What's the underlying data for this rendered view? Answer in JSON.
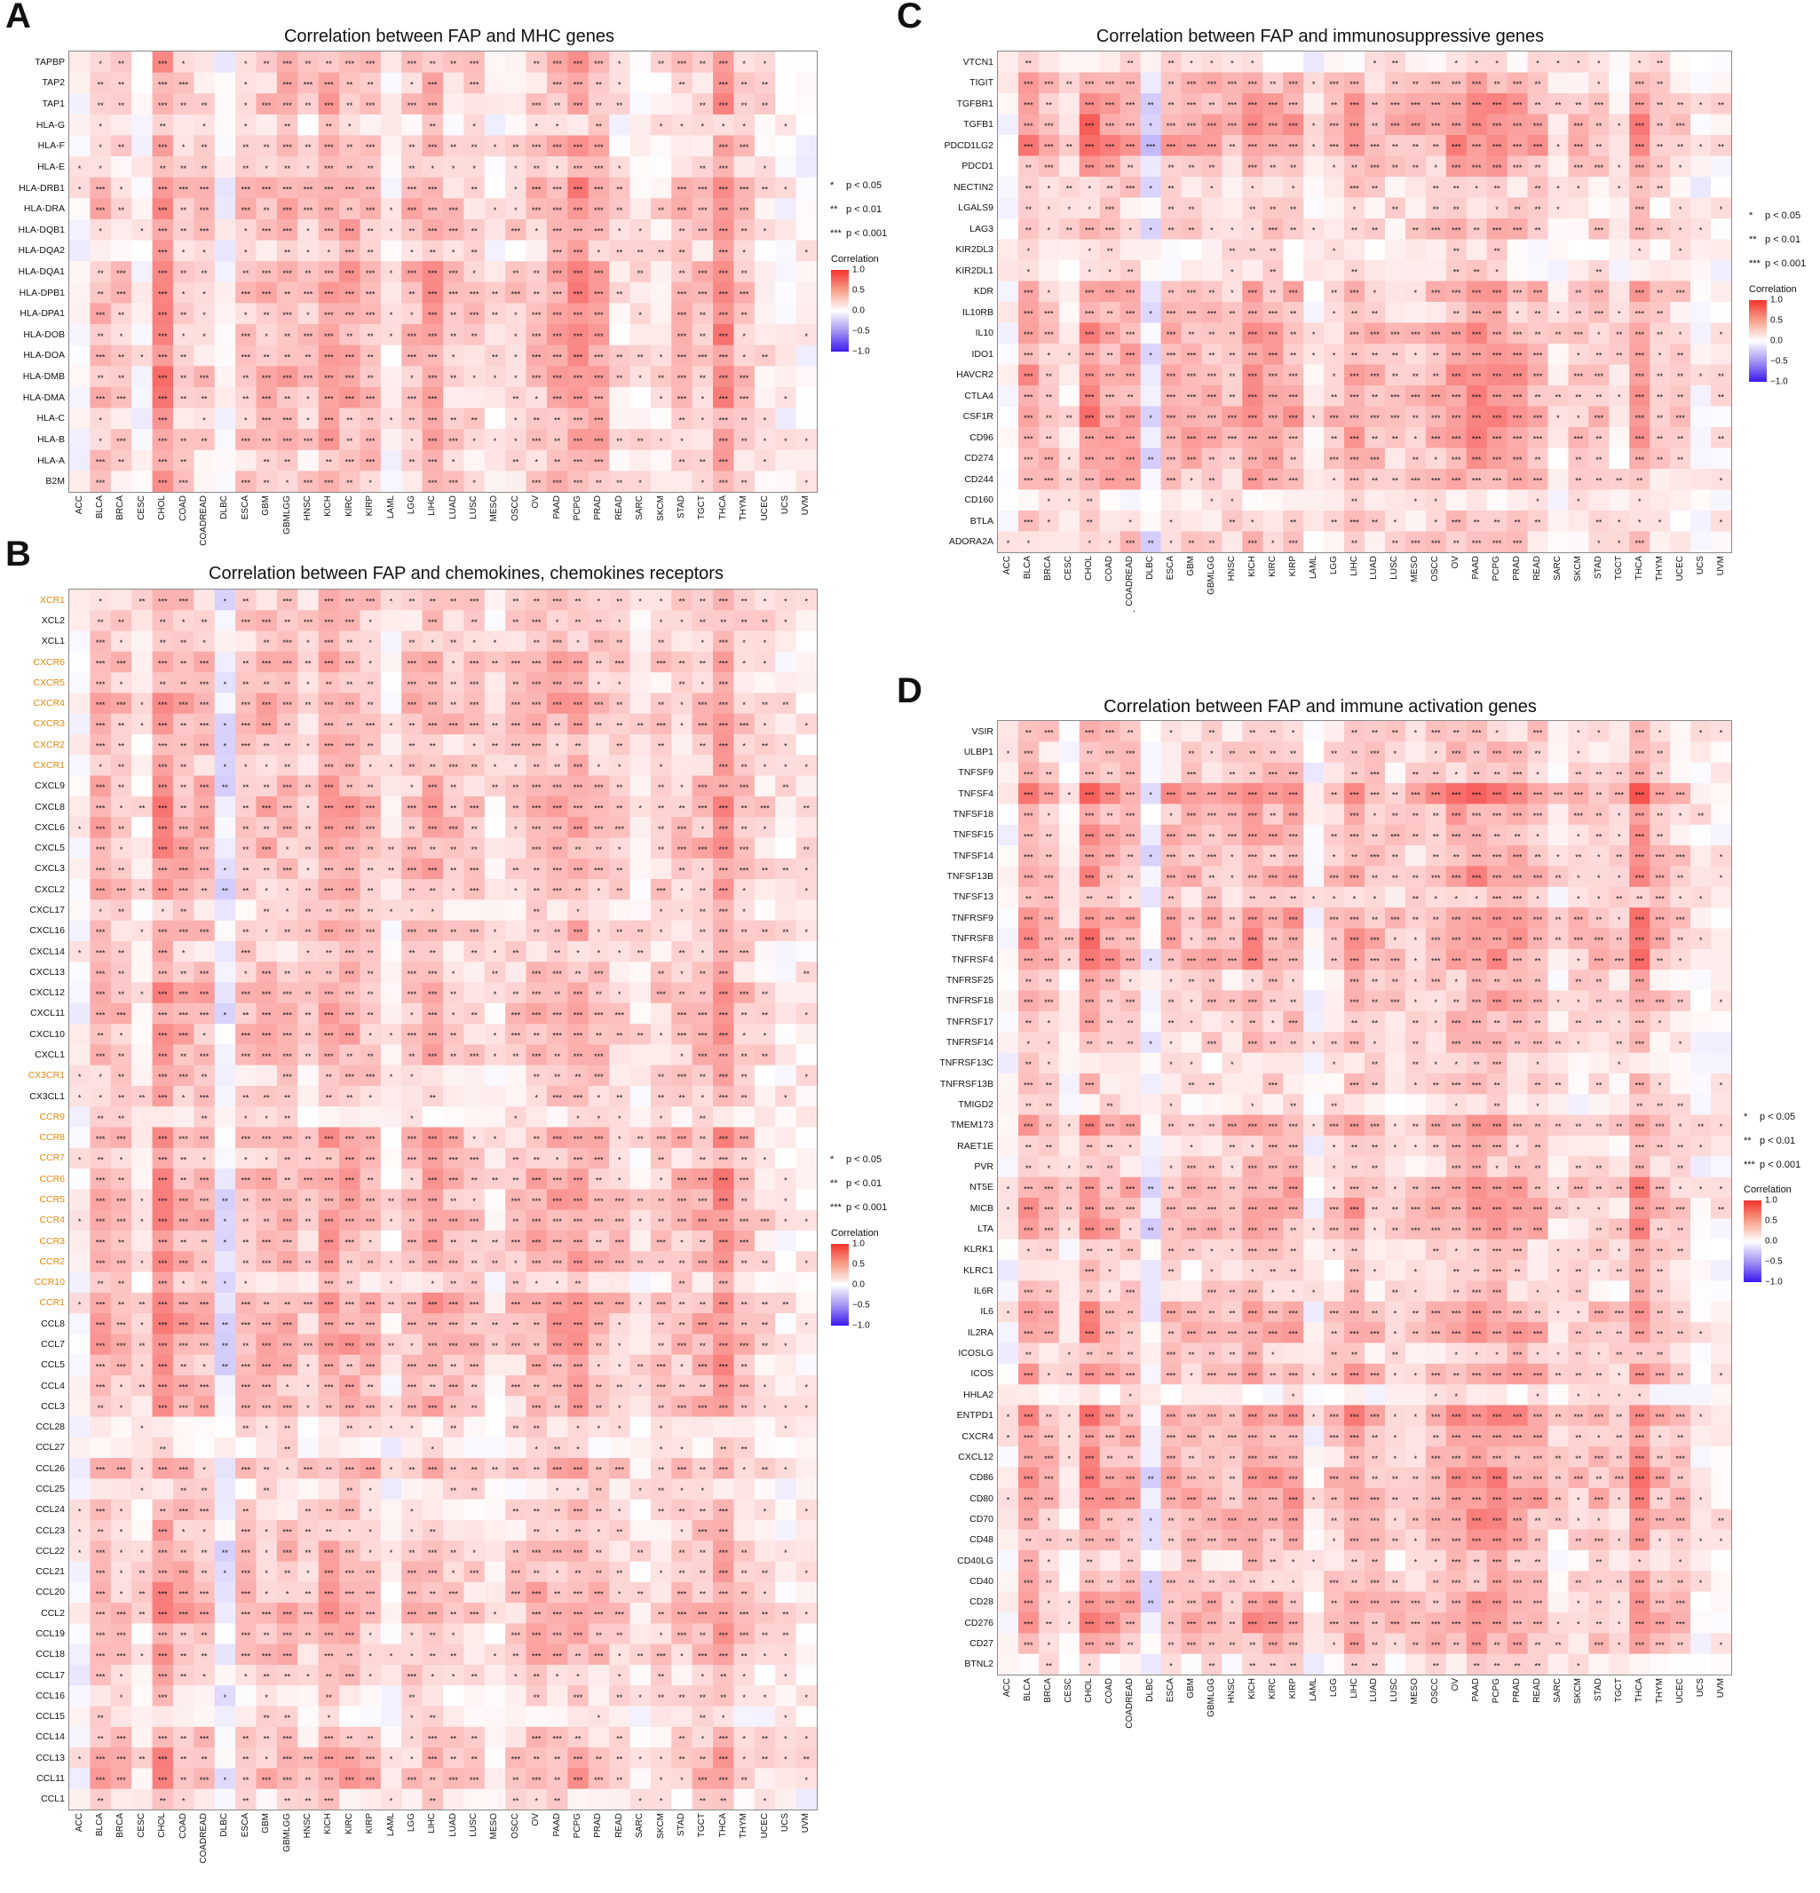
{
  "labels": {
    "A": "A",
    "B": "B",
    "C": "C",
    "D": "D"
  },
  "legend": {
    "sig1": "p < 0.05",
    "sig2": "p < 0.01",
    "sig3": "p < 0.001",
    "star1": "*",
    "star2": "**",
    "star3": "***",
    "cbar_title": "Correlation",
    "cbar_ticks": [
      "1.0",
      "0.5",
      "0.0",
      "−0.5",
      "−1.0"
    ]
  },
  "colors": {
    "positive": "#f5322d",
    "neutral": "#ffffff",
    "negative": "#3a19f2",
    "highlight_label": "#e3890f"
  },
  "stray_mark": ".",
  "chart_data": [
    {
      "id": "A",
      "type": "heatmap",
      "title": "Correlation between FAP and MHC genes",
      "zlim": [
        -1.0,
        1.0
      ],
      "columns": [
        "ACC",
        "BLCA",
        "BRCA",
        "CESC",
        "CHOL",
        "COAD",
        "COADREAD",
        "DLBC",
        "ESCA",
        "GBM",
        "GBMLGG",
        "HNSC",
        "KICH",
        "KIRC",
        "KIRP",
        "LAML",
        "LGG",
        "LIHC",
        "LUAD",
        "LUSC",
        "MESO",
        "OSCC",
        "OV",
        "PAAD",
        "PCPG",
        "PRAD",
        "READ",
        "SARC",
        "SKCM",
        "STAD",
        "TGCT",
        "THCA",
        "THYM",
        "UCEC",
        "UCS",
        "UVM"
      ],
      "rows": [
        "TAPBP",
        "TAP2",
        "TAP1",
        "HLA-G",
        "HLA-F",
        "HLA-E",
        "HLA-DRB1",
        "HLA-DRA",
        "HLA-DQB1",
        "HLA-DQA2",
        "HLA-DQA1",
        "HLA-DPB1",
        "HLA-DPA1",
        "HLA-DOB",
        "HLA-DOA",
        "HLA-DMB",
        "HLA-DMA",
        "HLA-C",
        "HLA-B",
        "HLA-A",
        "B2M"
      ],
      "highlight_rows": [],
      "col_profile": [
        0.05,
        0.3,
        0.22,
        0.05,
        0.55,
        0.25,
        0.22,
        -0.02,
        0.25,
        0.3,
        0.38,
        0.22,
        0.42,
        0.38,
        0.32,
        0.08,
        0.3,
        0.4,
        0.22,
        0.22,
        0.1,
        0.2,
        0.28,
        0.4,
        0.5,
        0.4,
        0.15,
        0.12,
        0.15,
        0.25,
        0.28,
        0.55,
        0.28,
        0.15,
        0.05,
        0.05
      ],
      "row_profile": [
        0.9,
        0.8,
        0.9,
        0.4,
        0.8,
        0.6,
        1.1,
        1.1,
        1.0,
        0.7,
        1.1,
        1.1,
        1.1,
        1.0,
        1.0,
        1.1,
        1.0,
        0.8,
        0.9,
        0.8,
        0.8
      ]
    },
    {
      "id": "B",
      "type": "heatmap",
      "title": "Correlation between FAP and chemokines, chemokines receptors",
      "zlim": [
        -1.0,
        1.0
      ],
      "columns": [
        "ACC",
        "BLCA",
        "BRCA",
        "CESC",
        "CHOL",
        "COAD",
        "COADREAD",
        "DLBC",
        "ESCA",
        "GBM",
        "GBMLGG",
        "HNSC",
        "KICH",
        "KIRC",
        "KIRP",
        "LAML",
        "LGG",
        "LIHC",
        "LUAD",
        "LUSC",
        "MESO",
        "OSCC",
        "OV",
        "PAAD",
        "PCPG",
        "PRAD",
        "READ",
        "SARC",
        "SKCM",
        "STAD",
        "TGCT",
        "THCA",
        "THYM",
        "UCEC",
        "UCS",
        "UVM"
      ],
      "rows": [
        "XCR1",
        "XCL2",
        "XCL1",
        "CXCR6",
        "CXCR5",
        "CXCR4",
        "CXCR3",
        "CXCR2",
        "CXCR1",
        "CXCL9",
        "CXCL8",
        "CXCL6",
        "CXCL5",
        "CXCL3",
        "CXCL2",
        "CXCL17",
        "CXCL16",
        "CXCL14",
        "CXCL13",
        "CXCL12",
        "CXCL11",
        "CXCL10",
        "CXCL1",
        "CX3CR1",
        "CX3CL1",
        "CCR9",
        "CCR8",
        "CCR7",
        "CCR6",
        "CCR5",
        "CCR4",
        "CCR3",
        "CCR2",
        "CCR10",
        "CCR1",
        "CCL8",
        "CCL7",
        "CCL5",
        "CCL4",
        "CCL3",
        "CCL28",
        "CCL27",
        "CCL26",
        "CCL25",
        "CCL24",
        "CCL23",
        "CCL22",
        "CCL21",
        "CCL20",
        "CCL2",
        "CCL19",
        "CCL18",
        "CCL17",
        "CCL16",
        "CCL15",
        "CCL14",
        "CCL13",
        "CCL11",
        "CCL1"
      ],
      "highlight_rows": [
        "XCR1",
        "CXCR6",
        "CXCR5",
        "CXCR4",
        "CXCR3",
        "CXCR2",
        "CXCR1",
        "CX3CR1",
        "CCR9",
        "CCR8",
        "CCR7",
        "CCR6",
        "CCR5",
        "CCR4",
        "CCR3",
        "CCR2",
        "CCR10",
        "CCR1"
      ],
      "col_profile": [
        0.05,
        0.4,
        0.3,
        0.15,
        0.55,
        0.4,
        0.35,
        -0.1,
        0.3,
        0.35,
        0.35,
        0.25,
        0.45,
        0.4,
        0.35,
        0.1,
        0.3,
        0.4,
        0.3,
        0.25,
        0.15,
        0.25,
        0.4,
        0.4,
        0.45,
        0.35,
        0.25,
        0.15,
        0.25,
        0.3,
        0.35,
        0.55,
        0.3,
        0.2,
        0.1,
        0.12
      ],
      "row_profile": [
        0.7,
        0.7,
        0.6,
        0.9,
        0.7,
        1.0,
        0.9,
        0.7,
        0.7,
        0.9,
        1.0,
        0.9,
        0.9,
        0.9,
        0.8,
        0.5,
        0.8,
        0.6,
        0.8,
        1.0,
        0.9,
        0.9,
        0.9,
        0.6,
        0.7,
        0.3,
        1.0,
        0.8,
        1.0,
        1.0,
        1.0,
        0.9,
        0.9,
        0.6,
        1.1,
        1.0,
        1.0,
        0.9,
        0.9,
        0.9,
        0.4,
        0.3,
        0.9,
        0.4,
        0.6,
        0.7,
        0.8,
        0.8,
        0.9,
        1.0,
        0.8,
        0.9,
        0.6,
        0.4,
        0.3,
        0.7,
        0.9,
        1.0,
        0.4
      ]
    },
    {
      "id": "C",
      "type": "heatmap",
      "title": "Correlation between FAP and immunosuppressive genes",
      "zlim": [
        -1.0,
        1.0
      ],
      "columns": [
        "ACC",
        "BLCA",
        "BRCA",
        "CESC",
        "CHOL",
        "COAD",
        "COADREAD",
        "DLBC",
        "ESCA",
        "GBM",
        "GBMLGG",
        "HNSC",
        "KICH",
        "KIRC",
        "KIRP",
        "LAML",
        "LGG",
        "LIHC",
        "LUAD",
        "LUSC",
        "MESO",
        "OSCC",
        "OV",
        "PAAD",
        "PCPG",
        "PRAD",
        "READ",
        "SARC",
        "SKCM",
        "STAD",
        "TGCT",
        "THCA",
        "THYM",
        "UCEC",
        "UCS",
        "UVM"
      ],
      "rows": [
        "VTCN1",
        "TIGIT",
        "TGFBR1",
        "TGFB1",
        "PDCD1LG2",
        "PDCD1",
        "NECTIN2",
        "LGALS9",
        "LAG3",
        "KIR2DL3",
        "KIR2DL1",
        "KDR",
        "IL10RB",
        "IL10",
        "IDO1",
        "HAVCR2",
        "CTLA4",
        "CSF1R",
        "CD96",
        "CD274",
        "CD244",
        "CD160",
        "BTLA",
        "ADORA2A"
      ],
      "highlight_rows": [],
      "col_profile": [
        0.05,
        0.45,
        0.3,
        0.15,
        0.55,
        0.45,
        0.4,
        -0.15,
        0.35,
        0.35,
        0.35,
        0.3,
        0.45,
        0.4,
        0.4,
        0.05,
        0.25,
        0.4,
        0.3,
        0.25,
        0.3,
        0.35,
        0.45,
        0.5,
        0.5,
        0.4,
        0.35,
        0.15,
        0.25,
        0.3,
        0.15,
        0.5,
        0.25,
        0.25,
        0.05,
        0.1
      ],
      "row_profile": [
        0.3,
        0.8,
        1.1,
        1.2,
        1.2,
        0.8,
        0.5,
        0.5,
        0.7,
        0.3,
        0.3,
        0.9,
        0.7,
        1.0,
        0.9,
        1.1,
        1.0,
        1.1,
        1.0,
        0.9,
        0.8,
        0.2,
        0.5,
        0.6
      ]
    },
    {
      "id": "D",
      "type": "heatmap",
      "title": "Correlation between FAP and immune activation genes",
      "zlim": [
        -1.0,
        1.0
      ],
      "columns": [
        "ACC",
        "BLCA",
        "BRCA",
        "CESC",
        "CHOL",
        "COAD",
        "COADREAD",
        "DLBC",
        "ESCA",
        "GBM",
        "GBMLGG",
        "HNSC",
        "KICH",
        "KIRC",
        "KIRP",
        "LAML",
        "LGG",
        "LIHC",
        "LUAD",
        "LUSC",
        "MESO",
        "OSCC",
        "OV",
        "PAAD",
        "PCPG",
        "PRAD",
        "READ",
        "SARC",
        "SKCM",
        "STAD",
        "TGCT",
        "THCA",
        "THYM",
        "UCEC",
        "UCS",
        "UVM"
      ],
      "rows": [
        "VSIR",
        "ULBP1",
        "TNFSF9",
        "TNFSF4",
        "TNFSF18",
        "TNFSF15",
        "TNFSF14",
        "TNFSF13B",
        "TNFSF13",
        "TNFRSF9",
        "TNFRSF8",
        "TNFRSF4",
        "TNFRSF25",
        "TNFRSF18",
        "TNFRSF17",
        "TNFRSF14",
        "TNFRSF13C",
        "TNFRSF13B",
        "TMIGD2",
        "TMEM173",
        "RAET1E",
        "PVR",
        "NT5E",
        "MICB",
        "LTA",
        "KLRK1",
        "KLRC1",
        "IL6R",
        "IL6",
        "IL2RA",
        "ICOSLG",
        "ICOS",
        "HHLA2",
        "ENTPD1",
        "CXCR4",
        "CXCL12",
        "CD86",
        "CD80",
        "CD70",
        "CD48",
        "CD40LG",
        "CD40",
        "CD28",
        "CD276",
        "CD27",
        "BTNL2"
      ],
      "highlight_rows": [],
      "col_profile": [
        0.05,
        0.45,
        0.3,
        0.15,
        0.55,
        0.4,
        0.35,
        -0.1,
        0.35,
        0.3,
        0.3,
        0.3,
        0.45,
        0.4,
        0.4,
        0.05,
        0.25,
        0.45,
        0.3,
        0.25,
        0.25,
        0.35,
        0.45,
        0.5,
        0.5,
        0.4,
        0.35,
        0.15,
        0.25,
        0.3,
        0.2,
        0.55,
        0.3,
        0.25,
        0.08,
        0.1
      ],
      "row_profile": [
        0.6,
        0.6,
        0.6,
        1.3,
        0.9,
        0.8,
        0.8,
        1.0,
        0.6,
        1.1,
        1.1,
        1.1,
        0.6,
        0.8,
        0.7,
        0.6,
        0.4,
        0.5,
        0.3,
        1.0,
        0.6,
        0.6,
        1.0,
        1.0,
        0.9,
        0.5,
        0.5,
        0.6,
        1.0,
        1.0,
        0.6,
        0.9,
        0.2,
        1.2,
        1.0,
        0.9,
        1.1,
        1.1,
        1.0,
        0.8,
        0.6,
        0.7,
        1.0,
        1.1,
        0.8,
        0.3
      ]
    }
  ]
}
